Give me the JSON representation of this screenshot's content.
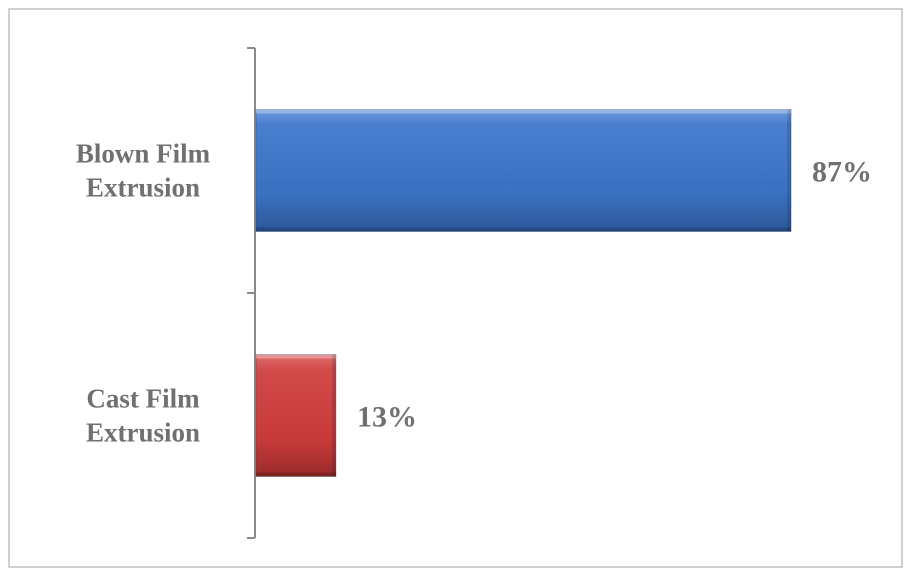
{
  "chart_data": {
    "type": "bar",
    "orientation": "horizontal",
    "categories": [
      [
        "Blown Film",
        "Extrusion"
      ],
      [
        "Cast Film",
        "Extrusion"
      ]
    ],
    "values": [
      87,
      13
    ],
    "data_labels": [
      "87%",
      "13%"
    ],
    "colors": [
      "#3a70c0",
      "#c83a3a"
    ],
    "xlim": [
      0,
      100
    ],
    "title": "",
    "xlabel": "",
    "ylabel": "",
    "grid": false,
    "legend": "none"
  }
}
